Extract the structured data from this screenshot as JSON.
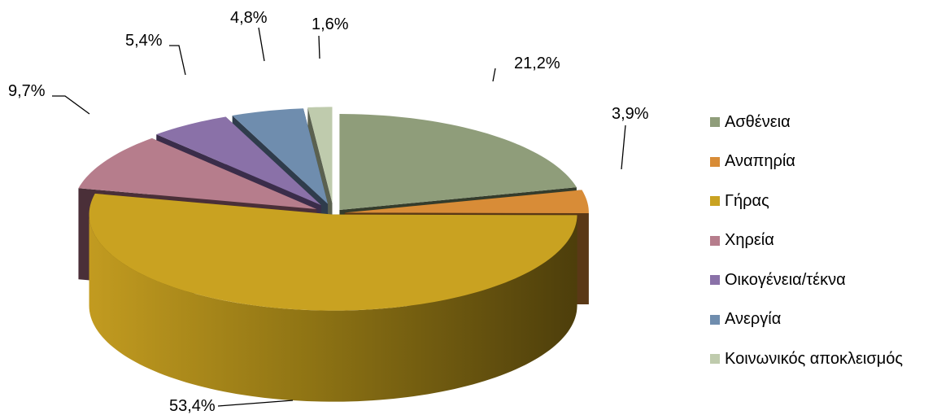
{
  "chart_data": {
    "type": "pie",
    "variant": "3d-exploded",
    "categories": [
      "Ασθένεια",
      "Αναπηρία",
      "Γήρας",
      "Χηρεία",
      "Οικογένεια/τέκνα",
      "Ανεργία",
      "Κοινωνικός αποκλεισμός"
    ],
    "values": [
      21.2,
      3.9,
      53.4,
      9.7,
      5.4,
      4.8,
      1.6
    ],
    "value_labels": [
      "21,2%",
      "3,9%",
      "53,4%",
      "9,7%",
      "5,4%",
      "4,8%",
      "1,6%"
    ],
    "colors": [
      "#8f9d7a",
      "#d88c37",
      "#c9a221",
      "#b67d8c",
      "#8a71a8",
      "#6f8dae",
      "#bfcbad"
    ],
    "side_colors": [
      "#343c2c",
      "#5a3816",
      "#5a4a10",
      "#4a2f38",
      "#3a2d4a",
      "#2f3c4c",
      "#5b6150"
    ],
    "legend": {
      "position": "right",
      "items": [
        "Ασθένεια",
        "Αναπηρία",
        "Γήρας",
        "Χηρεία",
        "Οικογένεια/τέκνα",
        "Ανεργία",
        "Κοινωνικός αποκλεισμός"
      ]
    },
    "title": "",
    "start_angle_deg": 0,
    "direction": "clockwise"
  }
}
